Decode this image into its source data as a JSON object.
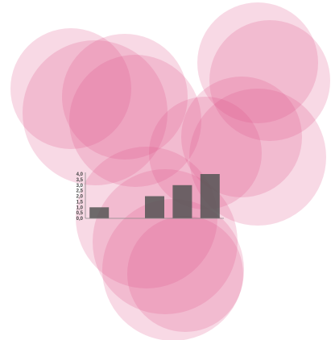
{
  "chart_data": {
    "type": "bar",
    "categories": [
      "",
      "",
      "",
      "",
      ""
    ],
    "values": [
      1.0,
      null,
      2.0,
      3.0,
      4.0
    ],
    "ylim": [
      0,
      4
    ],
    "yticks": [
      "0,0",
      "0,5",
      "1,0",
      "1,5",
      "2,0",
      "2,5",
      "3,0",
      "3,5",
      "4,0"
    ],
    "title": "",
    "xlabel": "",
    "ylabel": "",
    "grid": false,
    "legend": "none"
  },
  "colors": {
    "background": "#ffffff",
    "circle_fill": "#e0528a",
    "bar_fill": "#555555",
    "axis_line": "#888888"
  },
  "decoration": {
    "circle_count": 13
  }
}
